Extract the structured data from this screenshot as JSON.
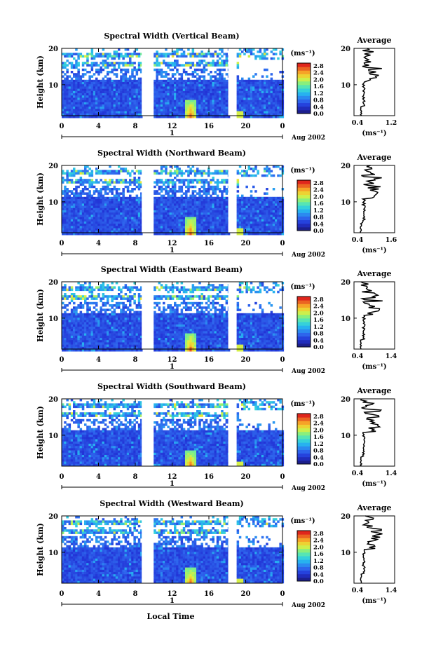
{
  "chart_data": [
    {
      "type": "heatmap",
      "title": "Spectral Width (Vertical Beam)",
      "ylabel": "Height (km)",
      "y_ticks": [
        "20",
        "10"
      ],
      "x_ticks": [
        "0",
        "4",
        "8",
        "12",
        "16",
        "20",
        "0"
      ],
      "day_label": "1",
      "date_label": "Aug 2002",
      "colorbar": {
        "unit_label": "(ms⁻¹)",
        "ticks": [
          "2.8",
          "2.4",
          "2.0",
          "1.6",
          "1.2",
          "0.8",
          "0.4",
          "0.0"
        ]
      },
      "average_profile": {
        "title": "Average",
        "xlabel": "(ms⁻¹)",
        "x_ticks": [
          "0.4",
          "1.2"
        ],
        "y_ticks": [
          "20",
          "10"
        ],
        "xlim": [
          0.4,
          1.2
        ]
      }
    },
    {
      "type": "heatmap",
      "title": "Spectral Width (Northward Beam)",
      "ylabel": "Height (km)",
      "y_ticks": [
        "20",
        "10"
      ],
      "x_ticks": [
        "0",
        "4",
        "8",
        "12",
        "16",
        "20",
        "0"
      ],
      "day_label": "1",
      "date_label": "Aug 2002",
      "colorbar": {
        "unit_label": "(ms⁻¹)",
        "ticks": [
          "2.8",
          "2.4",
          "2.0",
          "1.6",
          "1.2",
          "0.8",
          "0.4",
          "0.0"
        ]
      },
      "average_profile": {
        "title": "Average",
        "xlabel": "(ms⁻¹)",
        "x_ticks": [
          "0.4",
          "1.6"
        ],
        "y_ticks": [
          "20",
          "10"
        ],
        "xlim": [
          0.4,
          1.6
        ]
      }
    },
    {
      "type": "heatmap",
      "title": "Spectral Width (Eastward Beam)",
      "ylabel": "Height (km)",
      "y_ticks": [
        "20",
        "10"
      ],
      "x_ticks": [
        "0",
        "4",
        "8",
        "12",
        "16",
        "20",
        "0"
      ],
      "day_label": "1",
      "date_label": "Aug 2002",
      "colorbar": {
        "unit_label": "(ms⁻¹)",
        "ticks": [
          "2.8",
          "2.4",
          "2.0",
          "1.6",
          "1.2",
          "0.8",
          "0.4",
          "0.0"
        ]
      },
      "average_profile": {
        "title": "Average",
        "xlabel": "(ms⁻¹)",
        "x_ticks": [
          "0.4",
          "1.4"
        ],
        "y_ticks": [
          "20",
          "10"
        ],
        "xlim": [
          0.4,
          1.4
        ]
      }
    },
    {
      "type": "heatmap",
      "title": "Spectral Width (Southward Beam)",
      "ylabel": "Height (km)",
      "y_ticks": [
        "20",
        "10"
      ],
      "x_ticks": [
        "0",
        "4",
        "8",
        "12",
        "16",
        "20",
        "0"
      ],
      "day_label": "1",
      "date_label": "Aug 2002",
      "colorbar": {
        "unit_label": "(ms⁻¹)",
        "ticks": [
          "2.8",
          "2.4",
          "2.0",
          "1.6",
          "1.2",
          "0.8",
          "0.4",
          "0.0"
        ]
      },
      "average_profile": {
        "title": "Average",
        "xlabel": "(ms⁻¹)",
        "x_ticks": [
          "0.4",
          "1.4"
        ],
        "y_ticks": [
          "20",
          "10"
        ],
        "xlim": [
          0.4,
          1.4
        ]
      }
    },
    {
      "type": "heatmap",
      "title": "Spectral Width (Westward Beam)",
      "ylabel": "Height (km)",
      "y_ticks": [
        "20",
        "10"
      ],
      "x_ticks": [
        "0",
        "4",
        "8",
        "12",
        "16",
        "20",
        "0"
      ],
      "day_label": "1",
      "date_label": "Aug 2002",
      "xlabel": "Local Time",
      "colorbar": {
        "unit_label": "(ms⁻¹)",
        "ticks": [
          "2.8",
          "2.4",
          "2.0",
          "1.6",
          "1.2",
          "0.8",
          "0.4",
          "0.0"
        ]
      },
      "average_profile": {
        "title": "Average",
        "xlabel": "(ms⁻¹)",
        "x_ticks": [
          "0.4",
          "1.4"
        ],
        "y_ticks": [
          "20",
          "10"
        ],
        "xlim": [
          0.4,
          1.4
        ]
      }
    }
  ]
}
